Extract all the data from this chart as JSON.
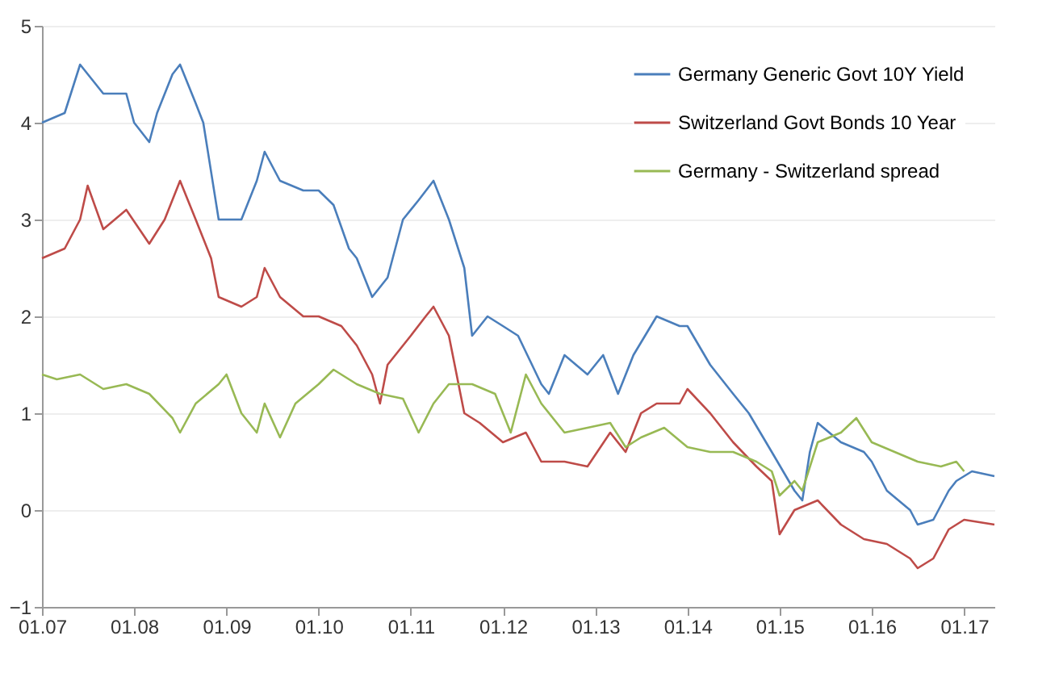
{
  "chart_data": {
    "type": "line",
    "ylim": [
      -1,
      5
    ],
    "yticks": [
      -1,
      0,
      1,
      2,
      3,
      4,
      5
    ],
    "xlim": [
      "2007-01",
      "2017-05"
    ],
    "xticks": [
      {
        "value": "2007-01",
        "label": "01.07"
      },
      {
        "value": "2008-01",
        "label": "01.08"
      },
      {
        "value": "2009-01",
        "label": "01.09"
      },
      {
        "value": "2010-01",
        "label": "01.10"
      },
      {
        "value": "2011-01",
        "label": "01.11"
      },
      {
        "value": "2012-01",
        "label": "01.12"
      },
      {
        "value": "2013-01",
        "label": "01.13"
      },
      {
        "value": "2014-01",
        "label": "01.14"
      },
      {
        "value": "2015-01",
        "label": "01.15"
      },
      {
        "value": "2016-01",
        "label": "01.16"
      },
      {
        "value": "2017-01",
        "label": "01.17"
      }
    ],
    "grid": "y",
    "legend": "top right",
    "line_style": "solid",
    "marker": "none",
    "series": [
      {
        "name": "Germany Generic Govt 10Y Yield",
        "color": "#4a7ebb",
        "x": [
          "2007-01",
          "2007-04",
          "2007-06",
          "2007-09",
          "2007-12",
          "2008-01",
          "2008-03",
          "2008-04",
          "2008-06",
          "2008-07",
          "2008-09",
          "2008-10",
          "2008-12",
          "2009-01",
          "2009-03",
          "2009-05",
          "2009-06",
          "2009-08",
          "2009-11",
          "2010-01",
          "2010-03",
          "2010-05",
          "2010-06",
          "2010-08",
          "2010-10",
          "2010-12",
          "2011-02",
          "2011-04",
          "2011-06",
          "2011-08",
          "2011-09",
          "2011-11",
          "2012-01",
          "2012-03",
          "2012-06",
          "2012-07",
          "2012-09",
          "2012-12",
          "2013-02",
          "2013-04",
          "2013-06",
          "2013-09",
          "2013-12",
          "2014-01",
          "2014-04",
          "2014-07",
          "2014-09",
          "2014-12",
          "2015-03",
          "2015-04",
          "2015-05",
          "2015-06",
          "2015-09",
          "2015-12",
          "2016-01",
          "2016-03",
          "2016-06",
          "2016-07",
          "2016-09",
          "2016-11",
          "2016-12",
          "2017-02",
          "2017-05"
        ],
        "values": [
          4.0,
          4.1,
          4.6,
          4.3,
          4.3,
          4.0,
          3.8,
          4.1,
          4.5,
          4.6,
          4.2,
          4.0,
          3.0,
          3.0,
          3.0,
          3.4,
          3.7,
          3.4,
          3.3,
          3.3,
          3.15,
          2.7,
          2.6,
          2.2,
          2.4,
          3.0,
          3.2,
          3.4,
          3.0,
          2.5,
          1.8,
          2.0,
          1.9,
          1.8,
          1.3,
          1.2,
          1.6,
          1.4,
          1.6,
          1.2,
          1.6,
          2.0,
          1.9,
          1.9,
          1.5,
          1.2,
          1.0,
          0.6,
          0.2,
          0.1,
          0.6,
          0.9,
          0.7,
          0.6,
          0.5,
          0.2,
          0.0,
          -0.15,
          -0.1,
          0.2,
          0.3,
          0.4,
          0.35
        ]
      },
      {
        "name": "Switzerland Govt Bonds 10 Year",
        "color": "#be4b48",
        "x": [
          "2007-01",
          "2007-04",
          "2007-06",
          "2007-07",
          "2007-09",
          "2007-12",
          "2008-03",
          "2008-05",
          "2008-07",
          "2008-09",
          "2008-11",
          "2008-12",
          "2009-03",
          "2009-05",
          "2009-06",
          "2009-08",
          "2009-11",
          "2010-01",
          "2010-04",
          "2010-06",
          "2010-08",
          "2010-09",
          "2010-10",
          "2011-01",
          "2011-03",
          "2011-04",
          "2011-06",
          "2011-08",
          "2011-10",
          "2012-01",
          "2012-04",
          "2012-06",
          "2012-09",
          "2012-12",
          "2013-03",
          "2013-05",
          "2013-07",
          "2013-09",
          "2013-12",
          "2014-01",
          "2014-04",
          "2014-07",
          "2014-10",
          "2014-12",
          "2015-01",
          "2015-03",
          "2015-06",
          "2015-09",
          "2015-12",
          "2016-03",
          "2016-06",
          "2016-07",
          "2016-09",
          "2016-11",
          "2017-01",
          "2017-05"
        ],
        "values": [
          2.6,
          2.7,
          3.0,
          3.35,
          2.9,
          3.1,
          2.75,
          3.0,
          3.4,
          3.0,
          2.6,
          2.2,
          2.1,
          2.2,
          2.5,
          2.2,
          2.0,
          2.0,
          1.9,
          1.7,
          1.4,
          1.1,
          1.5,
          1.8,
          2.0,
          2.1,
          1.8,
          1.0,
          0.9,
          0.7,
          0.8,
          0.5,
          0.5,
          0.45,
          0.8,
          0.6,
          1.0,
          1.1,
          1.1,
          1.25,
          1.0,
          0.7,
          0.45,
          0.3,
          -0.25,
          0.0,
          0.1,
          -0.15,
          -0.3,
          -0.35,
          -0.5,
          -0.6,
          -0.5,
          -0.2,
          -0.1,
          -0.15
        ]
      },
      {
        "name": "Germany - Switzerland spread",
        "color": "#98b954",
        "x": [
          "2007-01",
          "2007-03",
          "2007-06",
          "2007-09",
          "2007-12",
          "2008-03",
          "2008-06",
          "2008-07",
          "2008-09",
          "2008-12",
          "2009-01",
          "2009-03",
          "2009-05",
          "2009-06",
          "2009-08",
          "2009-10",
          "2010-01",
          "2010-03",
          "2010-06",
          "2010-09",
          "2010-12",
          "2011-02",
          "2011-04",
          "2011-06",
          "2011-09",
          "2011-12",
          "2012-02",
          "2012-04",
          "2012-06",
          "2012-09",
          "2012-12",
          "2013-03",
          "2013-05",
          "2013-07",
          "2013-10",
          "2014-01",
          "2014-04",
          "2014-07",
          "2014-10",
          "2014-12",
          "2015-01",
          "2015-03",
          "2015-04",
          "2015-06",
          "2015-09",
          "2015-11",
          "2016-01",
          "2016-04",
          "2016-07",
          "2016-10",
          "2016-12",
          "2017-01"
        ],
        "values": [
          1.4,
          1.35,
          1.4,
          1.25,
          1.3,
          1.2,
          0.95,
          0.8,
          1.1,
          1.3,
          1.4,
          1.0,
          0.8,
          1.1,
          0.75,
          1.1,
          1.3,
          1.45,
          1.3,
          1.2,
          1.15,
          0.8,
          1.1,
          1.3,
          1.3,
          1.2,
          0.8,
          1.4,
          1.1,
          0.8,
          0.85,
          0.9,
          0.65,
          0.75,
          0.85,
          0.65,
          0.6,
          0.6,
          0.5,
          0.4,
          0.15,
          0.3,
          0.2,
          0.7,
          0.8,
          0.95,
          0.7,
          0.6,
          0.5,
          0.45,
          0.5,
          0.4
        ]
      }
    ]
  }
}
